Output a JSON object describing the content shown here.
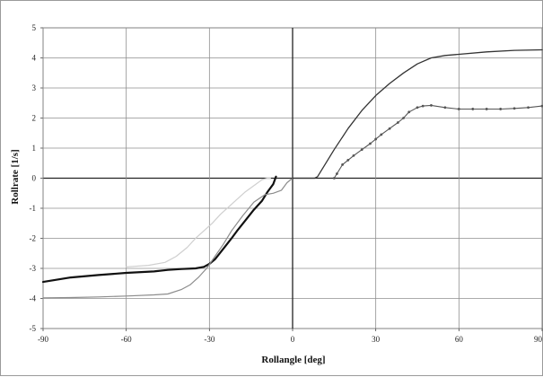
{
  "chart_data": {
    "type": "line",
    "xlabel": "Rollangle [deg]",
    "ylabel": "Rollrate [1/s]",
    "xlim": [
      -90,
      90
    ],
    "ylim": [
      -5,
      5
    ],
    "x_ticks": [
      -90,
      -60,
      -30,
      0,
      30,
      60,
      90
    ],
    "y_ticks": [
      -5,
      -4,
      -3,
      -2,
      -1,
      0,
      1,
      2,
      3,
      4,
      5
    ],
    "x_tick_labels": [
      "-90",
      "-60",
      "-30",
      "0",
      "30",
      "60",
      "90"
    ],
    "y_tick_labels": [
      "-5",
      "-4",
      "-3",
      "-2",
      "-1",
      "0",
      "1",
      "2",
      "3",
      "4",
      "5"
    ],
    "grid": true,
    "series": [
      {
        "color": "#111111",
        "width": 2.2,
        "markers": false,
        "x": [
          -90,
          -80,
          -70,
          -60,
          -50,
          -45,
          -40,
          -35,
          -32,
          -30,
          -28,
          -25,
          -22,
          -20,
          -17,
          -14,
          -11,
          -9,
          -7,
          -6
        ],
        "y": [
          -3.45,
          -3.3,
          -3.22,
          -3.15,
          -3.1,
          -3.05,
          -3.02,
          -3.0,
          -2.95,
          -2.85,
          -2.7,
          -2.35,
          -2.0,
          -1.75,
          -1.4,
          -1.05,
          -0.75,
          -0.45,
          -0.2,
          0.05
        ]
      },
      {
        "color": "#8c8c8c",
        "width": 1.2,
        "markers": false,
        "x": [
          -90,
          -80,
          -70,
          -60,
          -50,
          -45,
          -40,
          -37,
          -34,
          -31,
          -28,
          -25,
          -22,
          -18,
          -14,
          -10,
          -7,
          -4,
          -2,
          0
        ],
        "y": [
          -3.98,
          -3.97,
          -3.95,
          -3.92,
          -3.88,
          -3.85,
          -3.7,
          -3.55,
          -3.3,
          -3.0,
          -2.6,
          -2.2,
          -1.75,
          -1.25,
          -0.8,
          -0.55,
          -0.5,
          -0.4,
          -0.15,
          0.0
        ]
      },
      {
        "color": "#cfcfcf",
        "width": 1.2,
        "markers": false,
        "x": [
          -60,
          -52,
          -46,
          -42,
          -38,
          -35,
          -32,
          -29,
          -26,
          -23,
          -20,
          -17,
          -14,
          -11,
          -9,
          -8
        ],
        "y": [
          -2.95,
          -2.9,
          -2.8,
          -2.6,
          -2.3,
          -2.0,
          -1.75,
          -1.5,
          -1.2,
          -0.95,
          -0.7,
          -0.45,
          -0.25,
          -0.05,
          0.0,
          0.0
        ]
      },
      {
        "color": "#333333",
        "width": 1.3,
        "markers": false,
        "x": [
          0,
          8,
          9,
          12,
          15,
          20,
          25,
          30,
          35,
          40,
          45,
          50,
          55,
          60,
          70,
          80,
          90
        ],
        "y": [
          0.0,
          0.0,
          0.05,
          0.5,
          0.95,
          1.65,
          2.25,
          2.75,
          3.15,
          3.5,
          3.8,
          4.0,
          4.08,
          4.12,
          4.2,
          4.25,
          4.27
        ]
      },
      {
        "color": "#555555",
        "width": 1.1,
        "markers": true,
        "x": [
          15,
          16,
          18,
          20,
          22,
          25,
          28,
          30,
          32,
          35,
          38,
          40,
          42,
          45,
          47,
          50,
          55,
          60,
          65,
          70,
          75,
          80,
          85,
          90
        ],
        "y": [
          0.0,
          0.15,
          0.45,
          0.6,
          0.75,
          0.95,
          1.15,
          1.3,
          1.45,
          1.65,
          1.85,
          2.0,
          2.2,
          2.35,
          2.4,
          2.42,
          2.35,
          2.3,
          2.3,
          2.3,
          2.3,
          2.32,
          2.35,
          2.4
        ]
      }
    ]
  }
}
